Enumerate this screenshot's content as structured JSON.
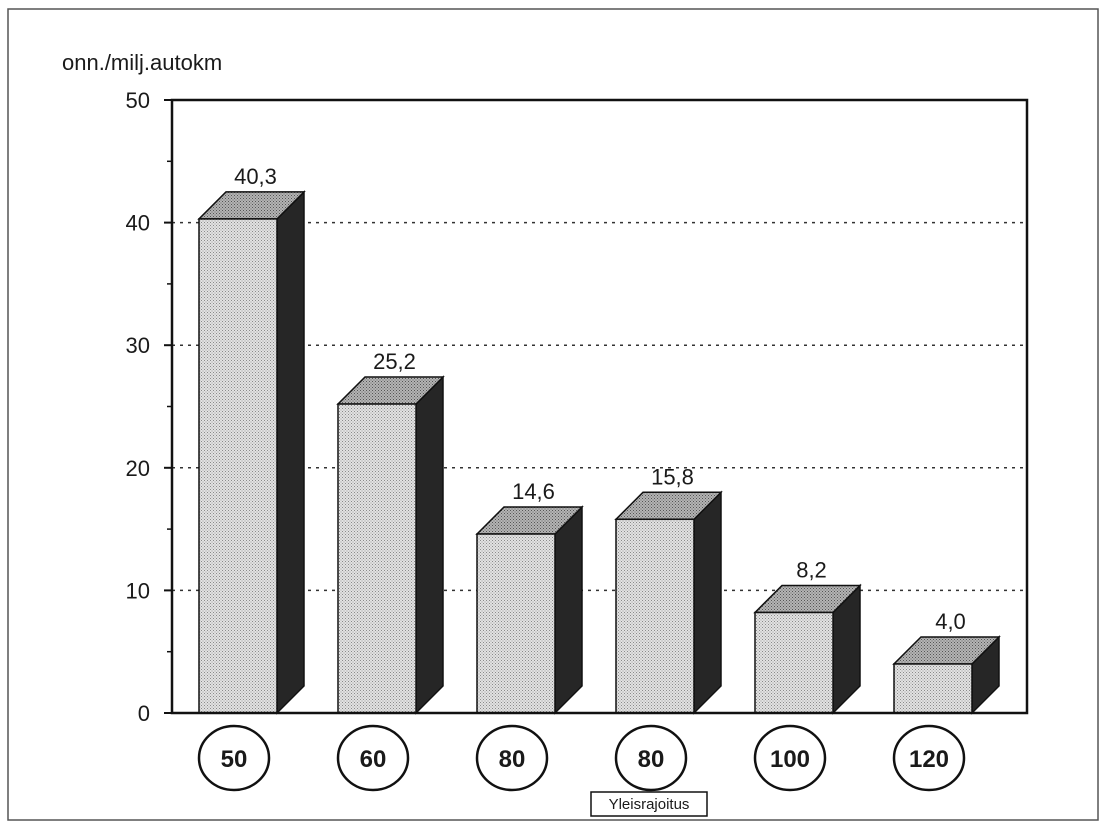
{
  "chart_data": {
    "type": "bar",
    "categories": [
      "50",
      "60",
      "80",
      "80",
      "100",
      "120"
    ],
    "values": [
      40.3,
      25.2,
      14.6,
      15.8,
      8.2,
      4.0
    ],
    "data_labels": [
      "40,3",
      "25,2",
      "14,6",
      "15,8",
      "8,2",
      "4,0"
    ],
    "title": "",
    "xlabel": "Yleisrajoitus",
    "ylabel": "onn./milj.autokm",
    "ylim": [
      0,
      50
    ],
    "yticks": [
      0,
      10,
      20,
      30,
      40,
      50
    ],
    "ytick_labels": [
      "0",
      "10",
      "20",
      "30",
      "40",
      "50"
    ],
    "grid": "dotted horizontal",
    "style": "3d bars",
    "colors": {
      "bar_front": "#d6d6d6",
      "bar_top": "#a8a8a8",
      "bar_side": "#262626",
      "axis": "#111111"
    }
  }
}
